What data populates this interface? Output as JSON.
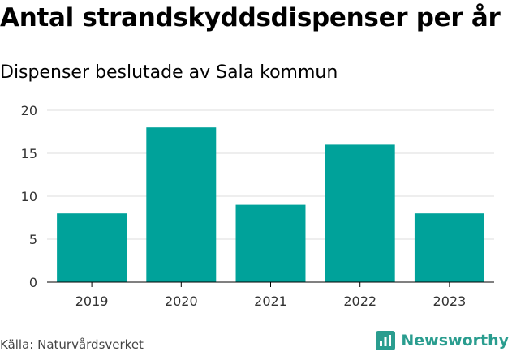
{
  "header": {
    "title": "Antal strandskyddsdispenser per år",
    "subtitle": "Dispenser beslutade av Sala kommun"
  },
  "footer": {
    "source": "Källa: Naturvårdsverket",
    "brand": "Newsworthy",
    "brand_icon": "newsworthy-logo-icon"
  },
  "colors": {
    "bar": "#00a29a",
    "grid": "#dddddd",
    "axis": "#000000",
    "brand": "#2a9d8f"
  },
  "chart_data": {
    "type": "bar",
    "categories": [
      "2019",
      "2020",
      "2021",
      "2022",
      "2023"
    ],
    "values": [
      8,
      18,
      9,
      16,
      8
    ],
    "ylim": [
      0,
      20
    ],
    "yticks": [
      0,
      5,
      10,
      15,
      20
    ],
    "grid": true,
    "xlabel": "",
    "ylabel": ""
  }
}
